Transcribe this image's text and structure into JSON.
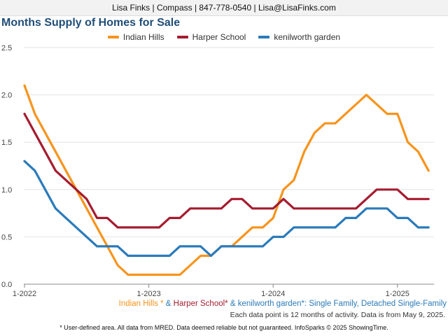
{
  "header": {
    "contact": "Lisa Finks | Compass | 847-778-0540 | Lisa@LisaFinks.com"
  },
  "title": "Months Supply of Homes for Sale",
  "footer": {
    "area_1": "Indian Hills *",
    "sep_1": " & ",
    "area_2": "Harper School*",
    "sep_2": " & ",
    "area_3": "kenilworth garden*",
    "property_type": ": Single Family, Detached Single-Family",
    "data_note": "Each data point is 12 months of activity. Data is from May 9, 2025.",
    "disclaimer": "* User-defined area. All data from MRED. Data deemed reliable but not guaranteed. InfoSparks © 2025 ShowingTime."
  },
  "colors": {
    "indian_hills": "#f7941d",
    "harper_school": "#a51c30",
    "kenilworth_garden": "#2b7bba"
  },
  "chart_data": {
    "type": "line",
    "title": "Months Supply of Homes for Sale",
    "xlabel": "",
    "ylabel": "",
    "ylim": [
      0,
      2.5
    ],
    "y_ticks": [
      "0.0",
      "0.5",
      "1.0",
      "1.5",
      "2.0",
      "2.5"
    ],
    "x_ticks": [
      {
        "label": "1-2022",
        "x": "2022-01"
      },
      {
        "label": "1-2023",
        "x": "2023-01"
      },
      {
        "label": "1-2024",
        "x": "2024-01"
      },
      {
        "label": "1-2025",
        "x": "2025-01"
      }
    ],
    "grid": "horizontal",
    "legend_position": "top-center",
    "x": [
      "2022-01",
      "2022-02",
      "2022-03",
      "2022-04",
      "2022-05",
      "2022-06",
      "2022-07",
      "2022-08",
      "2022-09",
      "2022-10",
      "2022-11",
      "2022-12",
      "2023-01",
      "2023-02",
      "2023-03",
      "2023-04",
      "2023-05",
      "2023-06",
      "2023-07",
      "2023-08",
      "2023-09",
      "2023-10",
      "2023-11",
      "2023-12",
      "2024-01",
      "2024-02",
      "2024-03",
      "2024-04",
      "2024-05",
      "2024-06",
      "2024-07",
      "2024-08",
      "2024-09",
      "2024-10",
      "2024-11",
      "2024-12",
      "2025-01",
      "2025-02",
      "2025-03",
      "2025-04"
    ],
    "series": [
      {
        "name": "Indian Hills",
        "color": "#f7941d",
        "values": [
          2.1,
          1.8,
          1.6,
          1.4,
          1.2,
          1.0,
          0.8,
          0.6,
          0.4,
          0.2,
          0.1,
          0.1,
          0.1,
          0.1,
          0.1,
          0.1,
          0.2,
          0.3,
          0.3,
          0.4,
          0.4,
          0.5,
          0.6,
          0.6,
          0.7,
          1.0,
          1.1,
          1.4,
          1.6,
          1.7,
          1.7,
          1.8,
          1.9,
          2.0,
          1.9,
          1.8,
          1.8,
          1.5,
          1.4,
          1.2
        ]
      },
      {
        "name": "Harper School",
        "color": "#a51c30",
        "values": [
          1.8,
          1.6,
          1.4,
          1.2,
          1.1,
          1.0,
          0.9,
          0.7,
          0.7,
          0.6,
          0.6,
          0.6,
          0.6,
          0.6,
          0.7,
          0.7,
          0.8,
          0.8,
          0.8,
          0.8,
          0.9,
          0.9,
          0.8,
          0.8,
          0.8,
          0.9,
          0.8,
          0.8,
          0.8,
          0.8,
          0.8,
          0.8,
          0.8,
          0.9,
          1.0,
          1.0,
          1.0,
          0.9,
          0.9,
          0.9
        ]
      },
      {
        "name": "kenilworth garden",
        "color": "#2b7bba",
        "values": [
          1.3,
          1.2,
          1.0,
          0.8,
          0.7,
          0.6,
          0.5,
          0.4,
          0.4,
          0.4,
          0.3,
          0.3,
          0.3,
          0.3,
          0.3,
          0.4,
          0.4,
          0.4,
          0.3,
          0.4,
          0.4,
          0.4,
          0.4,
          0.4,
          0.5,
          0.5,
          0.6,
          0.6,
          0.6,
          0.6,
          0.6,
          0.7,
          0.7,
          0.8,
          0.8,
          0.8,
          0.7,
          0.7,
          0.6,
          0.6
        ]
      }
    ]
  }
}
